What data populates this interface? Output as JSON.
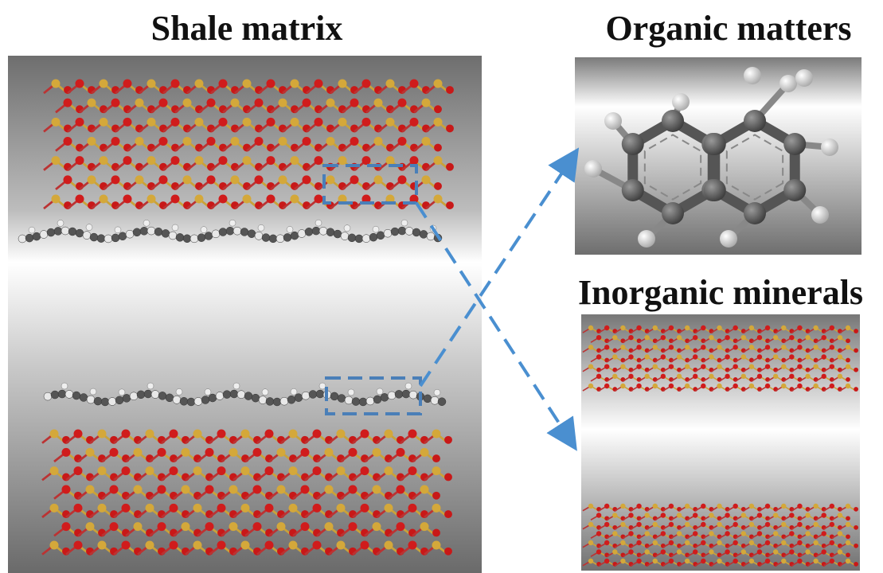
{
  "panels": [
    {
      "title": "Shale matrix"
    },
    {
      "title": "Organic matters"
    },
    {
      "title": "Inorganic minerals"
    }
  ]
}
